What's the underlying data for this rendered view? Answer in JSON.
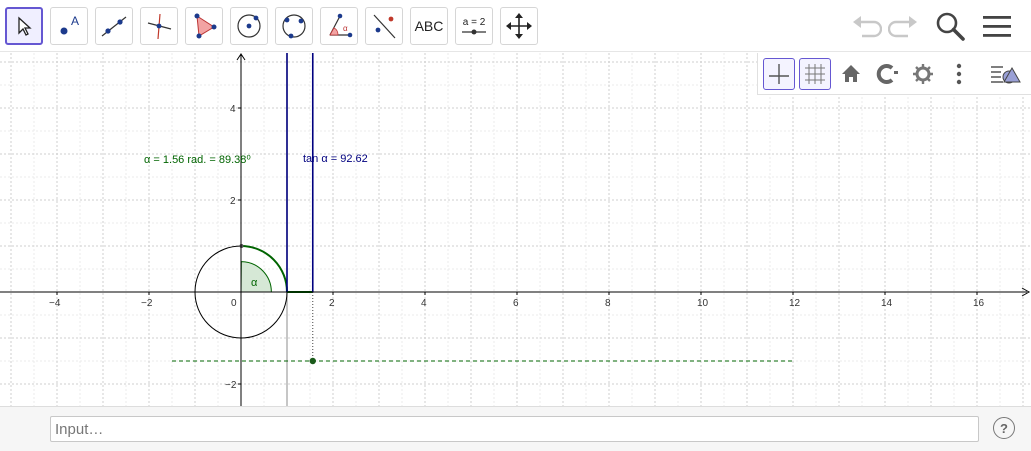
{
  "toolbar": {
    "tools": [
      {
        "name": "move",
        "icon": "cursor-arrow-icon",
        "active": true
      },
      {
        "name": "point",
        "icon": "point-icon",
        "label": "A"
      },
      {
        "name": "line",
        "icon": "line-icon"
      },
      {
        "name": "perpendicular-line",
        "icon": "perpendicular-line-icon"
      },
      {
        "name": "polygon",
        "icon": "polygon-icon"
      },
      {
        "name": "circle-center-point",
        "icon": "circle-center-icon"
      },
      {
        "name": "circle-three-points",
        "icon": "circle-three-points-icon"
      },
      {
        "name": "angle",
        "icon": "angle-icon"
      },
      {
        "name": "reflect",
        "icon": "reflect-icon"
      },
      {
        "name": "text",
        "icon": "text-icon",
        "label": "ABC"
      },
      {
        "name": "slider",
        "icon": "slider-icon",
        "label": "a = 2"
      },
      {
        "name": "move-graphics-view",
        "icon": "move-view-icon"
      }
    ],
    "right": [
      "undo-icon",
      "redo-icon",
      "search-icon",
      "menu-icon"
    ]
  },
  "stylebar": {
    "buttons": [
      "axes-icon",
      "grid-icon",
      "home-icon",
      "label-style-icon",
      "settings-icon",
      "more-vertical-icon",
      "toggle-views-icon"
    ]
  },
  "graphics": {
    "x_ticks": [
      "−4",
      "−2",
      "0",
      "2",
      "4",
      "6",
      "8",
      "10",
      "12",
      "14",
      "16"
    ],
    "y_ticks": [
      "4",
      "2",
      "−2"
    ],
    "angle_text": "α = 1.56 rad. = 89.38⁰",
    "angle_symbol": "α",
    "tan_text": "tan α = 92.62",
    "colors": {
      "angle": "#006400",
      "tangent": "#00007f",
      "grid_major": "#cfcfcf",
      "grid_minor": "#ebebeb",
      "axis": "#000000"
    }
  },
  "input": {
    "placeholder": "Input…",
    "help_label": "?"
  }
}
